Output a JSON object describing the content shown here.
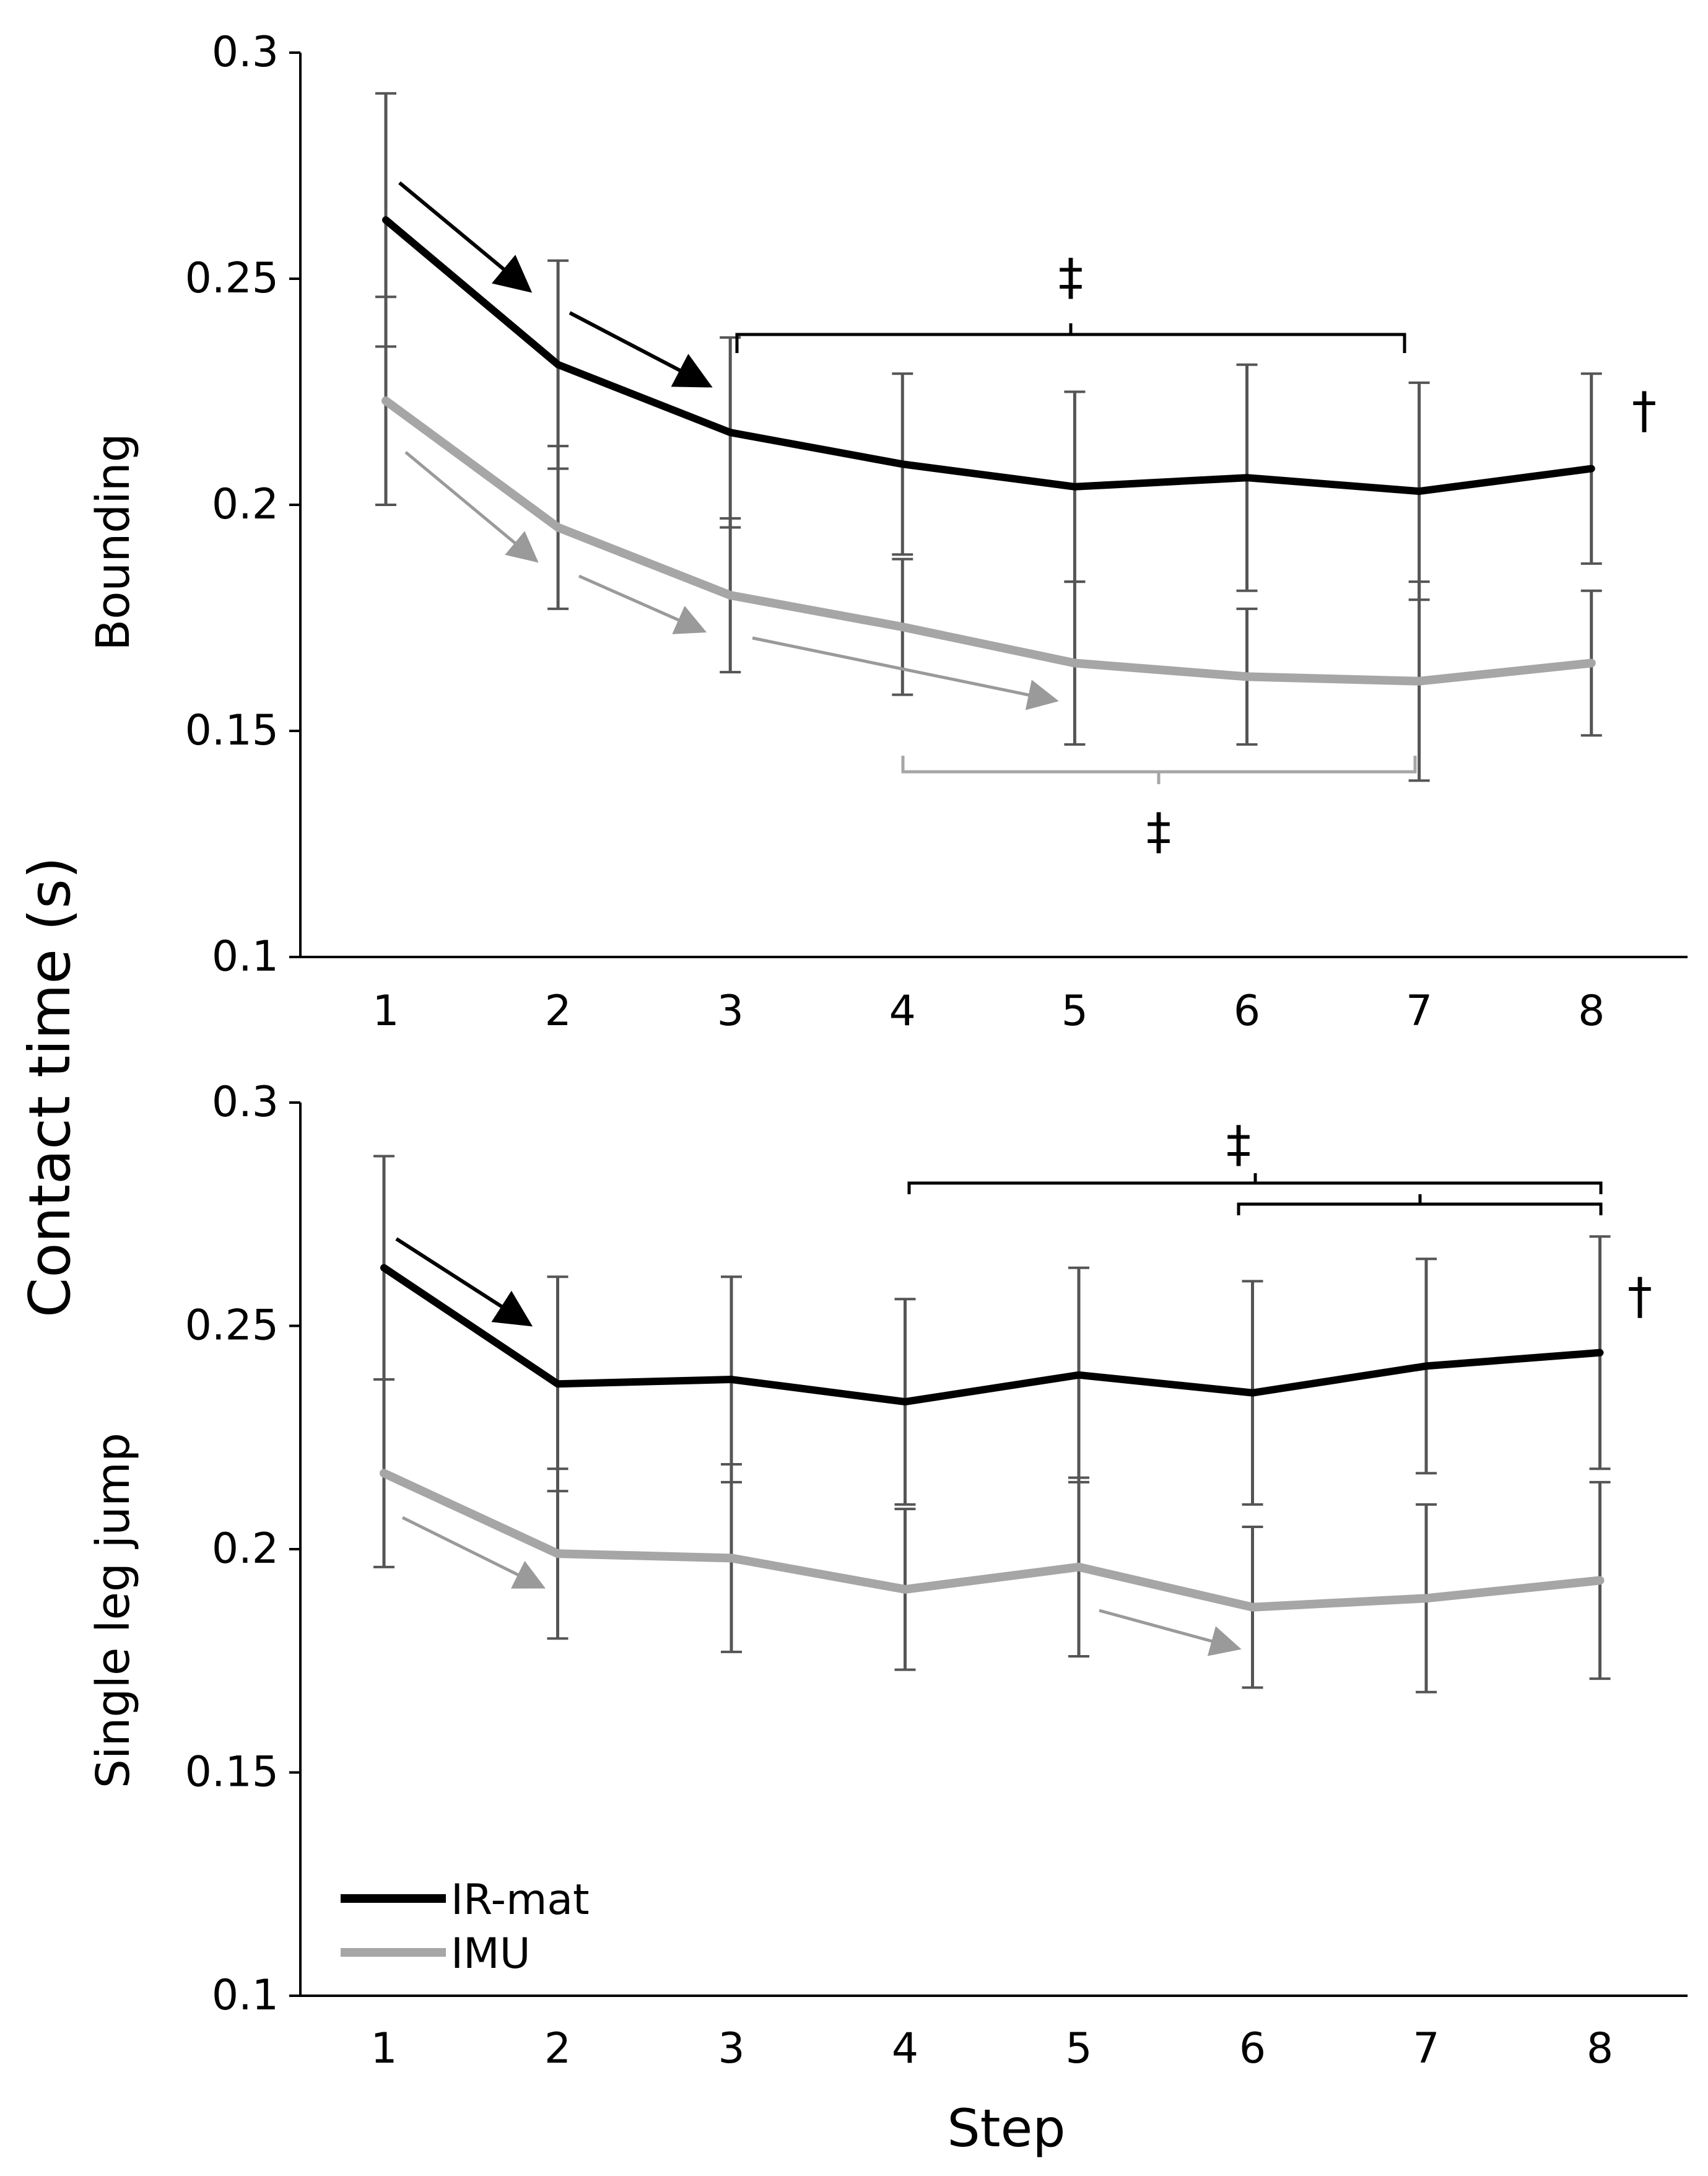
{
  "chart_data": {
    "type": "line",
    "ylabel": "Contact time (s)",
    "xlabel": "Step",
    "legend": {
      "position": "bottom-left",
      "entries": [
        {
          "name": "IR-mat",
          "color": "#000000"
        },
        {
          "name": "IMU",
          "color": "#a6a6a6"
        }
      ]
    },
    "panels": [
      {
        "panel_label": "Bounding",
        "x": [
          1,
          2,
          3,
          4,
          5,
          6,
          7,
          8
        ],
        "x_tick_labels": [
          "1",
          "2",
          "3",
          "4",
          "5",
          "6",
          "7",
          "8"
        ],
        "ylim": [
          0.1,
          0.3
        ],
        "y_tick_labels": [
          "0.1",
          "0.15",
          "0.2",
          "0.25",
          "0.3"
        ],
        "series": [
          {
            "name": "IR-mat",
            "color": "#000000",
            "values": [
              0.263,
              0.231,
              0.216,
              0.209,
              0.204,
              0.206,
              0.203,
              0.208
            ],
            "error": [
              0.028,
              0.023,
              0.021,
              0.02,
              0.021,
              0.025,
              0.024,
              0.021
            ]
          },
          {
            "name": "IMU",
            "color": "#a6a6a6",
            "values": [
              0.223,
              0.195,
              0.18,
              0.173,
              0.165,
              0.162,
              0.161,
              0.165
            ],
            "error": [
              0.023,
              0.018,
              0.017,
              0.015,
              0.018,
              0.015,
              0.022,
              0.016
            ]
          }
        ],
        "annotations": [
          {
            "symbol": "‡",
            "series": "IR-mat",
            "from_step": 3,
            "to_step": 7
          },
          {
            "symbol": "‡",
            "series": "IMU",
            "from_step": 4,
            "to_step": 7
          },
          {
            "symbol": "†",
            "at_step": 8
          }
        ]
      },
      {
        "panel_label": "Single leg jump",
        "x": [
          1,
          2,
          3,
          4,
          5,
          6,
          7,
          8
        ],
        "x_tick_labels": [
          "1",
          "2",
          "3",
          "4",
          "5",
          "6",
          "7",
          "8"
        ],
        "ylim": [
          0.1,
          0.3
        ],
        "y_tick_labels": [
          "0.1",
          "0.15",
          "0.2",
          "0.25",
          "0.3"
        ],
        "series": [
          {
            "name": "IR-mat",
            "color": "#000000",
            "values": [
              0.263,
              0.237,
              0.238,
              0.233,
              0.239,
              0.235,
              0.241,
              0.244
            ],
            "error": [
              0.025,
              0.024,
              0.023,
              0.023,
              0.024,
              0.025,
              0.024,
              0.026
            ]
          },
          {
            "name": "IMU",
            "color": "#a6a6a6",
            "values": [
              0.217,
              0.199,
              0.198,
              0.191,
              0.196,
              0.187,
              0.189,
              0.193
            ],
            "error": [
              0.021,
              0.019,
              0.021,
              0.018,
              0.02,
              0.018,
              0.021,
              0.022
            ]
          }
        ],
        "annotations": [
          {
            "symbol": "‡",
            "series": "IR-mat",
            "from_step": 4,
            "to_step": 8
          },
          {
            "symbol": "‡",
            "series": "IR-mat",
            "from_step": 6,
            "to_step": 8
          },
          {
            "symbol": "†",
            "at_step": 8
          }
        ]
      }
    ]
  }
}
